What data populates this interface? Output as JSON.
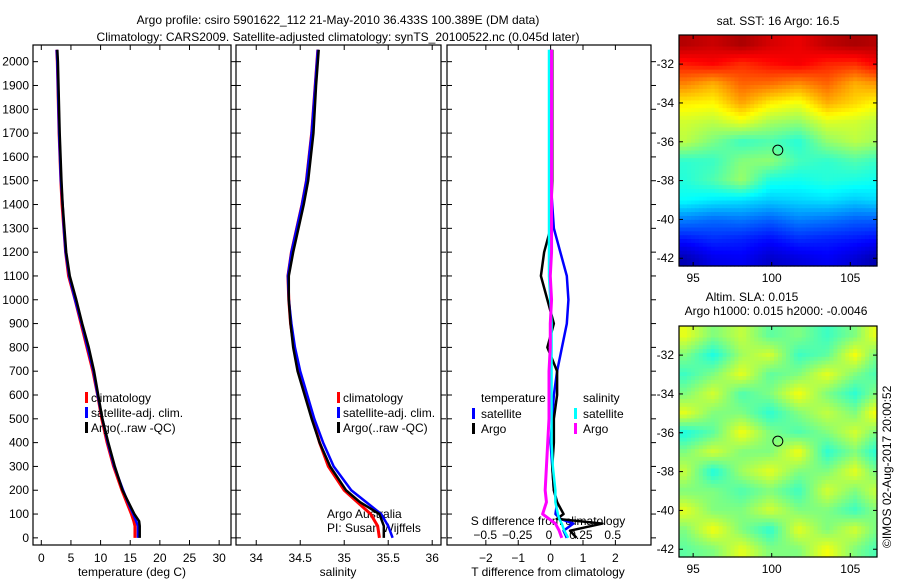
{
  "title_line1": "Argo profile: csiro 5901622_112 21-May-2010 36.433S 100.389E (DM data)",
  "title_line2": "Climatology: CARS2009. Satellite-adjusted climatology: synTS_20100522.nc (0.045d later)",
  "credit": "©IMOS 02-Aug-2017 20:00:52",
  "colors": {
    "climatology": "#ff0000",
    "satellite": "#0000ff",
    "argo": "#000000",
    "sal_satellite": "#00ffff",
    "sal_argo": "#ff00ff"
  },
  "chart_data": [
    {
      "type": "line",
      "id": "temperature",
      "xlabel": "temperature (deg C)",
      "ylabel": "",
      "xlim": [
        -1.4,
        32
      ],
      "ylim": [
        2070,
        -30
      ],
      "xticks": [
        0,
        5,
        10,
        15,
        20,
        25,
        30
      ],
      "yticks": [
        0,
        100,
        200,
        300,
        400,
        500,
        600,
        700,
        800,
        900,
        1000,
        1100,
        1200,
        1300,
        1400,
        1500,
        1600,
        1700,
        1800,
        1900,
        2000
      ],
      "legend": [
        "climatology",
        "satellite-adj. clim.",
        "Argo(..raw -QC)"
      ],
      "depth": [
        0,
        50,
        70,
        100,
        150,
        200,
        300,
        400,
        500,
        600,
        700,
        800,
        900,
        1000,
        1100,
        1200,
        1300,
        1400,
        1500,
        1700,
        2000,
        2050
      ],
      "series": [
        {
          "name": "climatology",
          "values": [
            15.8,
            15.8,
            15.6,
            15.2,
            14.4,
            13.6,
            12.2,
            11.1,
            10.2,
            9.5,
            8.7,
            7.7,
            6.7,
            5.7,
            4.6,
            4.1,
            3.8,
            3.5,
            3.3,
            3.0,
            2.7,
            2.6
          ]
        },
        {
          "name": "satellite-adj. clim.",
          "values": [
            16.3,
            16.3,
            16.0,
            15.5,
            14.6,
            13.8,
            12.3,
            11.2,
            10.3,
            9.5,
            8.8,
            7.8,
            6.8,
            5.7,
            4.7,
            4.1,
            3.8,
            3.6,
            3.3,
            3.0,
            2.7,
            2.6
          ]
        },
        {
          "name": "Argo(..raw -QC)",
          "values": [
            16.6,
            16.6,
            16.5,
            15.7,
            14.7,
            13.7,
            12.4,
            11.3,
            10.3,
            9.6,
            8.9,
            8.0,
            6.9,
            5.9,
            4.8,
            4.2,
            3.9,
            3.6,
            3.4,
            3.1,
            2.8,
            2.7
          ]
        }
      ]
    },
    {
      "type": "line",
      "id": "salinity",
      "xlabel": "salinity",
      "xlim": [
        33.77,
        36.1
      ],
      "ylim": [
        2070,
        -30
      ],
      "xticks": [
        34,
        34.5,
        35,
        35.5,
        36
      ],
      "legend": [
        "climatology",
        "satellite-adj. clim.",
        "Argo(..raw -QC)"
      ],
      "annotation": [
        "Argo Australia",
        "PI: Susan Wijffels"
      ],
      "depth": [
        0,
        50,
        100,
        150,
        200,
        300,
        400,
        500,
        600,
        700,
        800,
        900,
        1000,
        1100,
        1200,
        1300,
        1400,
        1500,
        1700,
        1900,
        2050
      ],
      "series": [
        {
          "name": "climatology",
          "values": [
            35.4,
            35.38,
            35.3,
            35.15,
            35.0,
            34.82,
            34.72,
            34.64,
            34.56,
            34.48,
            34.43,
            34.39,
            34.37,
            34.36,
            34.4,
            34.46,
            34.52,
            34.57,
            34.63,
            34.67,
            34.7
          ]
        },
        {
          "name": "satellite-adj. clim.",
          "values": [
            35.55,
            35.5,
            35.42,
            35.25,
            35.08,
            34.88,
            34.76,
            34.66,
            34.58,
            34.5,
            34.44,
            34.4,
            34.37,
            34.36,
            34.4,
            34.46,
            34.52,
            34.57,
            34.63,
            34.67,
            34.7
          ]
        },
        {
          "name": "Argo(..raw -QC)",
          "values": [
            35.45,
            35.45,
            35.4,
            35.18,
            35.02,
            34.84,
            34.72,
            34.63,
            34.55,
            34.47,
            34.42,
            34.39,
            34.37,
            34.37,
            34.42,
            34.48,
            34.54,
            34.59,
            34.65,
            34.68,
            34.71
          ]
        }
      ]
    },
    {
      "type": "line",
      "id": "differences",
      "xlabel": "T difference from climatology",
      "xlabel2": "S difference from climatology",
      "xlim": [
        -3.2,
        3.1
      ],
      "xlim2": [
        -0.8,
        0.8
      ],
      "ylim": [
        2070,
        -30
      ],
      "xticks": [
        -2,
        -1,
        0,
        1,
        2
      ],
      "xticks2": [
        -0.5,
        -0.25,
        0,
        0.25,
        0.5
      ],
      "legend_temperature": {
        "title": "temperature",
        "items": [
          "satellite",
          "Argo"
        ]
      },
      "legend_salinity": {
        "title": "salinity",
        "items": [
          "satellite",
          "Argo"
        ]
      },
      "depth": [
        0,
        30,
        60,
        80,
        100,
        150,
        200,
        300,
        400,
        500,
        600,
        700,
        800,
        900,
        1000,
        1100,
        1200,
        1300,
        1500,
        1800,
        2000,
        2050
      ],
      "series": [
        {
          "name": "T satellite",
          "values": [
            0.5,
            0.4,
            0.7,
            0.3,
            0.15,
            0.2,
            0.1,
            0.05,
            0.0,
            0.05,
            0.1,
            0.2,
            0.35,
            0.5,
            0.55,
            0.5,
            0.3,
            0.1,
            0.0,
            0.0,
            0.0,
            0.0
          ]
        },
        {
          "name": "T Argo",
          "values": [
            0.8,
            0.6,
            1.6,
            0.2,
            0.4,
            0.2,
            0.1,
            0.05,
            0.1,
            0.1,
            0.2,
            0.2,
            -0.1,
            0.1,
            -0.1,
            -0.3,
            -0.2,
            0.0,
            0.05,
            0.05,
            0.05,
            0.05
          ]
        },
        {
          "name": "S satellite",
          "values": [
            0.15,
            0.12,
            0.1,
            0.08,
            0.07,
            0.05,
            0.05,
            0.03,
            0.02,
            0.02,
            0.02,
            0.02,
            0.02,
            0.02,
            0.01,
            0.0,
            0.0,
            0.0,
            0.0,
            0.0,
            0.0,
            0.0
          ]
        },
        {
          "name": "S Argo",
          "values": [
            0.1,
            0.08,
            0.05,
            0.0,
            -0.05,
            -0.02,
            -0.03,
            -0.02,
            -0.01,
            0.0,
            0.0,
            0.0,
            0.01,
            0.01,
            0.02,
            0.01,
            0.02,
            0.02,
            0.02,
            0.02,
            0.02,
            0.02
          ]
        }
      ]
    },
    {
      "type": "heatmap",
      "id": "sst_map",
      "title": "sat. SST: 16 Argo: 16.5",
      "xlim": [
        94.1,
        106.7
      ],
      "ylim": [
        -42.4,
        -30.5
      ],
      "xticks": [
        95,
        100,
        105
      ],
      "yticks": [
        -32,
        -34,
        -36,
        -38,
        -40,
        -42
      ],
      "clim": [
        11.5,
        21
      ],
      "float_position": [
        100.389,
        -36.433
      ],
      "lat": [
        -31,
        -32,
        -33,
        -34,
        -35,
        -36,
        -37,
        -38,
        -39,
        -40,
        -41,
        -42
      ],
      "lon": [
        94.5,
        96.3,
        98.1,
        99.9,
        101.7,
        103.5,
        105.3,
        106.5
      ],
      "values": [
        [
          20.5,
          20.3,
          20.6,
          20.2,
          20.0,
          20.4,
          20.6,
          20.5
        ],
        [
          19.6,
          19.8,
          19.4,
          19.7,
          19.9,
          19.5,
          19.4,
          19.8
        ],
        [
          18.6,
          18.2,
          18.9,
          18.8,
          18.5,
          18.9,
          18.2,
          18.4
        ],
        [
          17.6,
          17.5,
          18.3,
          17.6,
          17.3,
          18.2,
          17.8,
          17.5
        ],
        [
          17.0,
          16.8,
          17.2,
          16.6,
          16.4,
          17.1,
          17.0,
          16.8
        ],
        [
          16.8,
          16.2,
          15.6,
          15.8,
          15.4,
          16.4,
          16.8,
          16.6
        ],
        [
          15.5,
          15.6,
          16.3,
          16.4,
          15.7,
          15.5,
          15.8,
          15.6
        ],
        [
          15.4,
          15.8,
          16.5,
          15.3,
          15.2,
          15.4,
          15.3,
          15.2
        ],
        [
          15.1,
          14.9,
          14.8,
          14.6,
          14.7,
          14.8,
          14.6,
          14.7
        ],
        [
          13.9,
          13.7,
          13.8,
          13.6,
          13.9,
          13.8,
          13.6,
          13.6
        ],
        [
          12.9,
          13.1,
          13.0,
          12.8,
          13.1,
          13.0,
          12.9,
          12.8
        ],
        [
          12.0,
          12.5,
          12.6,
          12.2,
          12.4,
          12.6,
          12.3,
          12.0
        ]
      ]
    },
    {
      "type": "heatmap",
      "id": "sla_map",
      "title": "Altim. SLA: 0.015",
      "subtitle": "Argo h1000: 0.015 h2000: -0.0046",
      "xlim": [
        94.1,
        106.7
      ],
      "ylim": [
        -42.4,
        -30.5
      ],
      "xticks": [
        95,
        100,
        105
      ],
      "yticks": [
        -32,
        -34,
        -36,
        -38,
        -40,
        -42
      ],
      "clim": [
        -0.3,
        0.3
      ],
      "float_position": [
        100.389,
        -36.433
      ],
      "lat": [
        -31,
        -32,
        -33,
        -34,
        -35,
        -36,
        -37,
        -38,
        -39,
        -40,
        -41,
        -42
      ],
      "lon": [
        94.5,
        96.3,
        98.1,
        99.9,
        101.7,
        103.5,
        105.3,
        106.5
      ],
      "values": [
        [
          0.06,
          0.0,
          0.04,
          -0.02,
          0.0,
          -0.04,
          0.0,
          0.06
        ],
        [
          0.0,
          -0.06,
          0.02,
          0.05,
          -0.04,
          -0.02,
          0.07,
          0.0
        ],
        [
          -0.04,
          0.0,
          0.06,
          -0.02,
          0.0,
          0.06,
          0.0,
          -0.03
        ],
        [
          0.0,
          0.05,
          -0.03,
          0.0,
          0.07,
          0.0,
          -0.05,
          0.0
        ],
        [
          0.06,
          0.0,
          0.0,
          -0.05,
          0.0,
          0.04,
          0.0,
          0.07
        ],
        [
          -0.06,
          -0.02,
          0.07,
          0.0,
          -0.03,
          0.0,
          0.05,
          0.0
        ],
        [
          0.0,
          0.05,
          0.0,
          0.0,
          0.07,
          -0.05,
          0.0,
          -0.05
        ],
        [
          0.04,
          -0.06,
          0.02,
          0.06,
          0.0,
          0.0,
          0.06,
          0.0
        ],
        [
          0.0,
          0.0,
          -0.03,
          0.0,
          -0.04,
          0.05,
          0.0,
          0.04
        ],
        [
          0.06,
          0.0,
          0.0,
          0.05,
          0.0,
          0.0,
          -0.04,
          0.0
        ],
        [
          0.0,
          0.07,
          0.0,
          -0.05,
          0.06,
          0.0,
          0.05,
          0.0
        ],
        [
          -0.02,
          0.0,
          0.06,
          0.0,
          0.0,
          0.07,
          0.0,
          -0.03
        ]
      ]
    }
  ]
}
